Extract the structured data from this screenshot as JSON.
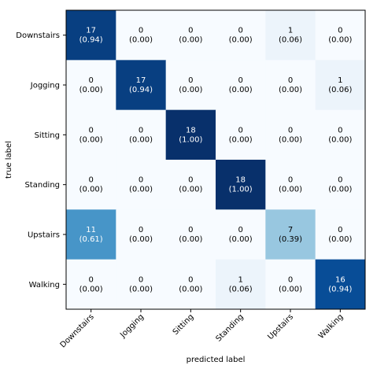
{
  "chart_data": {
    "type": "heatmap",
    "title": "",
    "xlabel": "predicted label",
    "ylabel": "true label",
    "labels": [
      "Downstairs",
      "Jogging",
      "Sitting",
      "Standing",
      "Upstairs",
      "Walking"
    ],
    "counts": [
      [
        17,
        0,
        0,
        0,
        1,
        0
      ],
      [
        0,
        17,
        0,
        0,
        0,
        1
      ],
      [
        0,
        0,
        18,
        0,
        0,
        0
      ],
      [
        0,
        0,
        0,
        18,
        0,
        0
      ],
      [
        11,
        0,
        0,
        0,
        7,
        0
      ],
      [
        0,
        0,
        0,
        1,
        0,
        16
      ]
    ],
    "fractions": [
      [
        "0.94",
        "0.00",
        "0.00",
        "0.00",
        "0.06",
        "0.00"
      ],
      [
        "0.00",
        "0.94",
        "0.00",
        "0.00",
        "0.00",
        "0.06"
      ],
      [
        "0.00",
        "0.00",
        "1.00",
        "0.00",
        "0.00",
        "0.00"
      ],
      [
        "0.00",
        "0.00",
        "0.00",
        "1.00",
        "0.00",
        "0.00"
      ],
      [
        "0.61",
        "0.00",
        "0.00",
        "0.00",
        "0.39",
        "0.00"
      ],
      [
        "0.00",
        "0.00",
        "0.00",
        "0.06",
        "0.00",
        "0.94"
      ]
    ],
    "colormap": "Blues",
    "cell_text_dark": "#000000",
    "cell_text_light": "#ffffff",
    "frame_color": "#000000",
    "grid": false
  }
}
